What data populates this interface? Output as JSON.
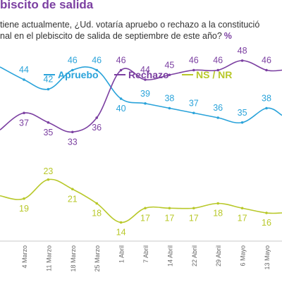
{
  "title": "biscito de salida",
  "question_line1": "tiene actualmente, ¿Ud. votaría apruebo o rechazo a la constitució",
  "question_line2": "nal en el plebiscito de salida de septiembre de este año?",
  "unit_marker": "%",
  "colors": {
    "apruebo": "#2aa3da",
    "rechazo": "#7b3fa1",
    "nsnr": "#b8c829",
    "axis": "#c8c8c8",
    "tick_text": "#666666"
  },
  "chart_data": {
    "type": "line",
    "title": "",
    "xlabel": "",
    "ylabel": "",
    "legend_position": "top",
    "grid": false,
    "ylim": [
      0,
      60
    ],
    "categories": [
      "4 Marzo",
      "11 Marzo",
      "18 Marzo",
      "25 Marzo",
      "1 Abril",
      "7 Abril",
      "14 Abril",
      "22 Abril",
      "29 Abril",
      "6 Mayo",
      "13 Mayo"
    ],
    "series": [
      {
        "name": "Apruebo",
        "color": "#2aa3da",
        "values": [
          44,
          42,
          46,
          46,
          40,
          39,
          38,
          37,
          36,
          35,
          38
        ]
      },
      {
        "name": "Rechazo",
        "color": "#7b3fa1",
        "values": [
          37,
          35,
          33,
          36,
          46,
          44,
          45,
          46,
          46,
          48,
          46
        ]
      },
      {
        "name": "NS / NR",
        "color": "#b8c829",
        "values": [
          19,
          23,
          21,
          18,
          14,
          17,
          17,
          17,
          18,
          17,
          16
        ]
      }
    ]
  }
}
